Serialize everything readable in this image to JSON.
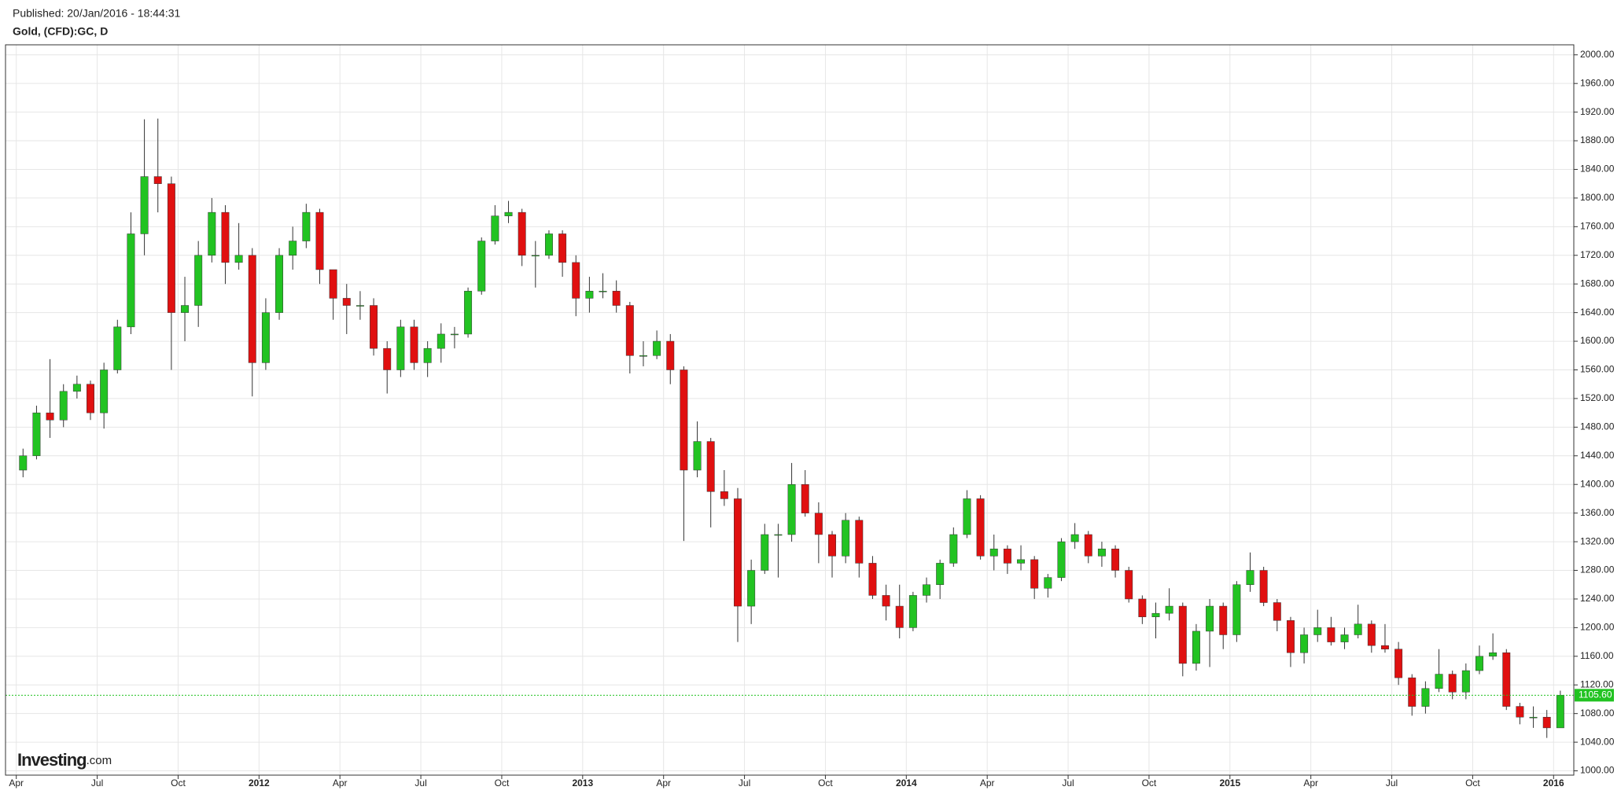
{
  "chart_data": {
    "type": "candlestick",
    "published": "Published: 20/Jan/2016 - 18:44:31",
    "title": "Gold, (CFD):GC, D",
    "logo": "Investing",
    "logo_suffix": ".com",
    "up_color": "#22c322",
    "down_color": "#e01010",
    "grid": true,
    "xlim": [
      -0.8,
      115.5
    ],
    "xticks": [
      {
        "value": 0,
        "label": "Apr"
      },
      {
        "value": 6,
        "label": "Jul"
      },
      {
        "value": 12,
        "label": "Oct"
      },
      {
        "value": 18,
        "label": "2012"
      },
      {
        "value": 24,
        "label": "Apr"
      },
      {
        "value": 30,
        "label": "Jul"
      },
      {
        "value": 36,
        "label": "Oct"
      },
      {
        "value": 42,
        "label": "2013"
      },
      {
        "value": 48,
        "label": "Apr"
      },
      {
        "value": 54,
        "label": "Jul"
      },
      {
        "value": 60,
        "label": "Oct"
      },
      {
        "value": 66,
        "label": "2014"
      },
      {
        "value": 72,
        "label": "Apr"
      },
      {
        "value": 78,
        "label": "Jul"
      },
      {
        "value": 84,
        "label": "Oct"
      },
      {
        "value": 90,
        "label": "2015"
      },
      {
        "value": 96,
        "label": "Apr"
      },
      {
        "value": 102,
        "label": "Jul"
      },
      {
        "value": 108,
        "label": "Oct"
      },
      {
        "value": 114,
        "label": "2016"
      }
    ],
    "ylim": [
      994,
      2014
    ],
    "yticks": [
      {
        "value": 1000,
        "label": "1000.00"
      },
      {
        "value": 1040,
        "label": "1040.00"
      },
      {
        "value": 1080,
        "label": "1080.00"
      },
      {
        "value": 1120,
        "label": "1120.00"
      },
      {
        "value": 1160,
        "label": "1160.00"
      },
      {
        "value": 1200,
        "label": "1200.00"
      },
      {
        "value": 1240,
        "label": "1240.00"
      },
      {
        "value": 1280,
        "label": "1280.00"
      },
      {
        "value": 1320,
        "label": "1320.00"
      },
      {
        "value": 1360,
        "label": "1360.00"
      },
      {
        "value": 1400,
        "label": "1400.00"
      },
      {
        "value": 1440,
        "label": "1440.00"
      },
      {
        "value": 1480,
        "label": "1480.00"
      },
      {
        "value": 1520,
        "label": "1520.00"
      },
      {
        "value": 1560,
        "label": "1560.00"
      },
      {
        "value": 1600,
        "label": "1600.00"
      },
      {
        "value": 1640,
        "label": "1640.00"
      },
      {
        "value": 1680,
        "label": "1680.00"
      },
      {
        "value": 1720,
        "label": "1720.00"
      },
      {
        "value": 1760,
        "label": "1760.00"
      },
      {
        "value": 1800,
        "label": "1800.00"
      },
      {
        "value": 1840,
        "label": "1840.00"
      },
      {
        "value": 1880,
        "label": "1880.00"
      },
      {
        "value": 1920,
        "label": "1920.00"
      },
      {
        "value": 1960,
        "label": "1960.00"
      },
      {
        "value": 2000,
        "label": "2000.00"
      }
    ],
    "price_line": {
      "value": 1105.6,
      "label": "1105.60",
      "color": "#22c322"
    },
    "open": [
      1420,
      1440,
      1500,
      1490,
      1530,
      1540,
      1500,
      1560,
      1620,
      1750,
      1830,
      1820,
      1640,
      1650,
      1720,
      1780,
      1710,
      1720,
      1570,
      1640,
      1720,
      1740,
      1780,
      1700,
      1660,
      1650,
      1650,
      1590,
      1560,
      1620,
      1570,
      1590,
      1610,
      1610,
      1670,
      1740,
      1775,
      1780,
      1720,
      1720,
      1750,
      1710,
      1660,
      1670,
      1670,
      1650,
      1580,
      1580,
      1600,
      1560,
      1420,
      1460,
      1390,
      1380,
      1230,
      1280,
      1330,
      1330,
      1400,
      1360,
      1330,
      1300,
      1350,
      1290,
      1245,
      1230,
      1200,
      1245,
      1260,
      1290,
      1330,
      1380,
      1300,
      1310,
      1290,
      1295,
      1255,
      1270,
      1320,
      1330,
      1300,
      1310,
      1280,
      1240,
      1215,
      1220,
      1230,
      1150,
      1195,
      1230,
      1190,
      1260,
      1280,
      1235,
      1210,
      1165,
      1190,
      1200,
      1180,
      1190,
      1205,
      1175,
      1170,
      1130,
      1090,
      1115,
      1135,
      1110,
      1140,
      1160,
      1165,
      1090,
      1075,
      1075,
      1060
    ],
    "high": [
      1450,
      1510,
      1575,
      1540,
      1552,
      1545,
      1570,
      1630,
      1780,
      1910,
      1911,
      1830,
      1690,
      1740,
      1800,
      1790,
      1765,
      1730,
      1660,
      1730,
      1760,
      1792,
      1785,
      1700,
      1680,
      1670,
      1660,
      1600,
      1630,
      1630,
      1600,
      1625,
      1620,
      1675,
      1745,
      1790,
      1796,
      1785,
      1740,
      1755,
      1755,
      1720,
      1690,
      1695,
      1685,
      1655,
      1600,
      1615,
      1610,
      1565,
      1488,
      1465,
      1420,
      1395,
      1295,
      1345,
      1345,
      1430,
      1420,
      1375,
      1335,
      1360,
      1355,
      1300,
      1260,
      1260,
      1250,
      1270,
      1295,
      1340,
      1392,
      1385,
      1330,
      1315,
      1315,
      1300,
      1275,
      1325,
      1346,
      1335,
      1320,
      1315,
      1285,
      1245,
      1235,
      1255,
      1235,
      1205,
      1240,
      1235,
      1265,
      1305,
      1285,
      1240,
      1215,
      1200,
      1225,
      1215,
      1200,
      1232,
      1210,
      1205,
      1180,
      1135,
      1125,
      1170,
      1140,
      1150,
      1175,
      1192,
      1170,
      1095,
      1090,
      1085,
      1112
    ],
    "low": [
      1410,
      1435,
      1465,
      1480,
      1520,
      1490,
      1478,
      1555,
      1610,
      1720,
      1780,
      1560,
      1600,
      1620,
      1710,
      1680,
      1700,
      1523,
      1560,
      1630,
      1700,
      1730,
      1680,
      1630,
      1610,
      1630,
      1580,
      1527,
      1550,
      1560,
      1550,
      1570,
      1590,
      1605,
      1665,
      1735,
      1765,
      1705,
      1675,
      1715,
      1690,
      1635,
      1640,
      1660,
      1640,
      1555,
      1565,
      1575,
      1540,
      1321,
      1410,
      1340,
      1370,
      1180,
      1205,
      1275,
      1270,
      1320,
      1355,
      1290,
      1270,
      1290,
      1270,
      1240,
      1210,
      1185,
      1195,
      1235,
      1240,
      1285,
      1325,
      1295,
      1280,
      1275,
      1280,
      1240,
      1242,
      1265,
      1310,
      1290,
      1285,
      1270,
      1235,
      1205,
      1185,
      1210,
      1132,
      1140,
      1145,
      1170,
      1180,
      1250,
      1230,
      1195,
      1145,
      1150,
      1180,
      1175,
      1170,
      1185,
      1165,
      1165,
      1120,
      1077,
      1080,
      1110,
      1100,
      1100,
      1135,
      1155,
      1085,
      1065,
      1060,
      1046,
      1060
    ],
    "close": [
      1440,
      1500,
      1490,
      1530,
      1540,
      1500,
      1560,
      1620,
      1750,
      1830,
      1820,
      1640,
      1650,
      1720,
      1780,
      1710,
      1720,
      1570,
      1640,
      1720,
      1740,
      1780,
      1700,
      1660,
      1650,
      1650,
      1590,
      1560,
      1620,
      1570,
      1590,
      1610,
      1610,
      1670,
      1740,
      1775,
      1780,
      1720,
      1720,
      1750,
      1710,
      1660,
      1670,
      1670,
      1650,
      1580,
      1580,
      1600,
      1560,
      1420,
      1460,
      1390,
      1380,
      1230,
      1280,
      1330,
      1330,
      1400,
      1360,
      1330,
      1300,
      1350,
      1290,
      1245,
      1230,
      1200,
      1245,
      1260,
      1290,
      1330,
      1380,
      1300,
      1310,
      1290,
      1295,
      1255,
      1270,
      1320,
      1330,
      1300,
      1310,
      1280,
      1240,
      1215,
      1220,
      1230,
      1150,
      1195,
      1230,
      1190,
      1260,
      1280,
      1235,
      1210,
      1165,
      1190,
      1200,
      1180,
      1190,
      1205,
      1175,
      1170,
      1130,
      1090,
      1115,
      1135,
      1110,
      1140,
      1160,
      1165,
      1090,
      1075,
      1075,
      1060,
      1105.6
    ]
  }
}
